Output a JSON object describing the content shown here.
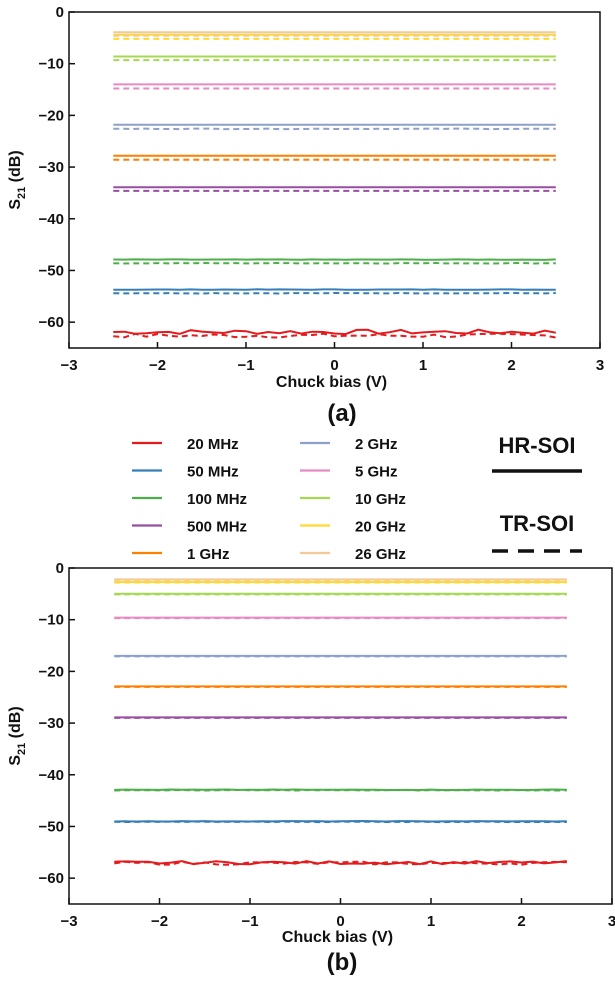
{
  "legend": {
    "items": [
      {
        "label": "20 MHz",
        "color": "#e41a1c"
      },
      {
        "label": "50 MHz",
        "color": "#377eb8"
      },
      {
        "label": "100 MHz",
        "color": "#4daf4a"
      },
      {
        "label": "500 MHz",
        "color": "#984ea3"
      },
      {
        "label": "1 GHz",
        "color": "#ff7f00"
      },
      {
        "label": "2 GHz",
        "color": "#8da0cb"
      },
      {
        "label": "5 GHz",
        "color": "#e78ac3"
      },
      {
        "label": "10 GHz",
        "color": "#a6d854"
      },
      {
        "label": "20 GHz",
        "color": "#ffd92f"
      },
      {
        "label": "26 GHz",
        "color": "#f4c99a"
      }
    ],
    "style_hr": "HR-SOI",
    "style_tr": "TR-SOI"
  },
  "chart_data": [
    {
      "type": "line",
      "panel_label": "(a)",
      "xlabel": "Chuck bias (V)",
      "ylabel": "S21 (dB)",
      "ylabel_main": "S",
      "ylabel_sub": "21",
      "ylabel_unit": " (dB)",
      "xlim": [
        -3,
        3
      ],
      "ylim": [
        -65,
        0
      ],
      "xticks": [
        -3,
        -2,
        -1,
        0,
        1,
        2,
        3
      ],
      "yticks": [
        0,
        -10,
        -20,
        -30,
        -40,
        -50,
        -60
      ],
      "xtick_labels": [
        "−3",
        "−2",
        "−1",
        "0",
        "1",
        "2",
        "3"
      ],
      "ytick_labels": [
        "0",
        "−10",
        "−20",
        "−30",
        "−40",
        "−50",
        "−60"
      ],
      "x_range": [
        -2.5,
        2.5
      ],
      "series": [
        {
          "name": "20 MHz",
          "substrate": "HR-SOI",
          "y": -61.9,
          "noise": 0.45
        },
        {
          "name": "20 MHz",
          "substrate": "TR-SOI",
          "y": -62.6,
          "noise": 0.4
        },
        {
          "name": "50 MHz",
          "substrate": "HR-SOI",
          "y": -53.7,
          "noise": 0.05
        },
        {
          "name": "50 MHz",
          "substrate": "TR-SOI",
          "y": -54.4,
          "noise": 0.05
        },
        {
          "name": "100 MHz",
          "substrate": "HR-SOI",
          "y": -47.9,
          "noise": 0.05
        },
        {
          "name": "100 MHz",
          "substrate": "TR-SOI",
          "y": -48.6,
          "noise": 0.05
        },
        {
          "name": "500 MHz",
          "substrate": "HR-SOI",
          "y": -33.9,
          "noise": 0.0
        },
        {
          "name": "500 MHz",
          "substrate": "TR-SOI",
          "y": -34.6,
          "noise": 0.0
        },
        {
          "name": "1 GHz",
          "substrate": "HR-SOI",
          "y": -27.8,
          "noise": 0.0
        },
        {
          "name": "1 GHz",
          "substrate": "TR-SOI",
          "y": -28.6,
          "noise": 0.0
        },
        {
          "name": "2 GHz",
          "substrate": "HR-SOI",
          "y": -21.8,
          "noise": 0.0
        },
        {
          "name": "2 GHz",
          "substrate": "TR-SOI",
          "y": -22.6,
          "noise": 0.05
        },
        {
          "name": "5 GHz",
          "substrate": "HR-SOI",
          "y": -14.0,
          "noise": 0.0
        },
        {
          "name": "5 GHz",
          "substrate": "TR-SOI",
          "y": -14.8,
          "noise": 0.0
        },
        {
          "name": "10 GHz",
          "substrate": "HR-SOI",
          "y": -8.6,
          "noise": 0.0
        },
        {
          "name": "10 GHz",
          "substrate": "TR-SOI",
          "y": -9.3,
          "noise": 0.0
        },
        {
          "name": "20 GHz",
          "substrate": "HR-SOI",
          "y": -4.4,
          "noise": 0.0
        },
        {
          "name": "20 GHz",
          "substrate": "TR-SOI",
          "y": -5.2,
          "noise": 0.0
        },
        {
          "name": "26 GHz",
          "substrate": "HR-SOI",
          "y": -3.9,
          "noise": 0.0
        },
        {
          "name": "26 GHz",
          "substrate": "TR-SOI",
          "y": -4.6,
          "noise": 0.0
        }
      ]
    },
    {
      "type": "line",
      "panel_label": "(b)",
      "xlabel": "Chuck bias (V)",
      "ylabel": "S21 (dB)",
      "ylabel_main": "S",
      "ylabel_sub": "21",
      "ylabel_unit": " (dB)",
      "xlim": [
        -3,
        3
      ],
      "ylim": [
        -65,
        0
      ],
      "xticks": [
        -3,
        -2,
        -1,
        0,
        1,
        2,
        3
      ],
      "yticks": [
        0,
        -10,
        -20,
        -30,
        -40,
        -50,
        -60
      ],
      "xtick_labels": [
        "−3",
        "−2",
        "−1",
        "0",
        "1",
        "2",
        "3"
      ],
      "ytick_labels": [
        "0",
        "−10",
        "−20",
        "−30",
        "−40",
        "−50",
        "−60"
      ],
      "x_range": [
        -2.5,
        2.5
      ],
      "series": [
        {
          "name": "20 MHz",
          "substrate": "HR-SOI",
          "y": -57.0,
          "noise": 0.3
        },
        {
          "name": "20 MHz",
          "substrate": "TR-SOI",
          "y": -57.1,
          "noise": 0.3
        },
        {
          "name": "50 MHz",
          "substrate": "HR-SOI",
          "y": -49.0,
          "noise": 0.05
        },
        {
          "name": "50 MHz",
          "substrate": "TR-SOI",
          "y": -49.1,
          "noise": 0.05
        },
        {
          "name": "100 MHz",
          "substrate": "HR-SOI",
          "y": -42.9,
          "noise": 0.05
        },
        {
          "name": "100 MHz",
          "substrate": "TR-SOI",
          "y": -43.0,
          "noise": 0.05
        },
        {
          "name": "500 MHz",
          "substrate": "HR-SOI",
          "y": -28.9,
          "noise": 0.0
        },
        {
          "name": "500 MHz",
          "substrate": "TR-SOI",
          "y": -29.0,
          "noise": 0.0
        },
        {
          "name": "1 GHz",
          "substrate": "HR-SOI",
          "y": -22.9,
          "noise": 0.0
        },
        {
          "name": "1 GHz",
          "substrate": "TR-SOI",
          "y": -23.0,
          "noise": 0.0
        },
        {
          "name": "2 GHz",
          "substrate": "HR-SOI",
          "y": -17.0,
          "noise": 0.0
        },
        {
          "name": "2 GHz",
          "substrate": "TR-SOI",
          "y": -17.1,
          "noise": 0.0
        },
        {
          "name": "5 GHz",
          "substrate": "HR-SOI",
          "y": -9.6,
          "noise": 0.0
        },
        {
          "name": "5 GHz",
          "substrate": "TR-SOI",
          "y": -9.7,
          "noise": 0.0
        },
        {
          "name": "10 GHz",
          "substrate": "HR-SOI",
          "y": -5.0,
          "noise": 0.0
        },
        {
          "name": "10 GHz",
          "substrate": "TR-SOI",
          "y": -5.1,
          "noise": 0.0
        },
        {
          "name": "20 GHz",
          "substrate": "HR-SOI",
          "y": -2.7,
          "noise": 0.0
        },
        {
          "name": "20 GHz",
          "substrate": "TR-SOI",
          "y": -2.8,
          "noise": 0.0
        },
        {
          "name": "26 GHz",
          "substrate": "HR-SOI",
          "y": -2.2,
          "noise": 0.0
        },
        {
          "name": "26 GHz",
          "substrate": "TR-SOI",
          "y": -2.3,
          "noise": 0.0
        }
      ]
    }
  ]
}
